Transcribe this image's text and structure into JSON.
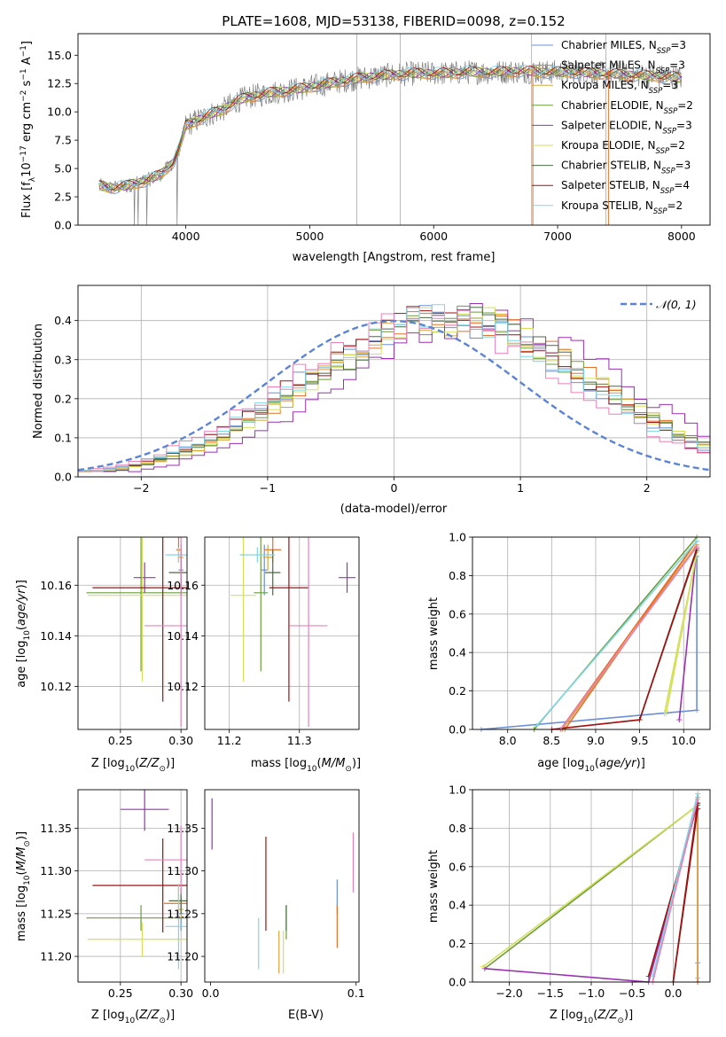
{
  "figure": {
    "title": "PLATE=1608, MJD=53138, FIBERID=0098, z=0.152"
  },
  "colors": {
    "chabrier_miles": "#6a8fd8",
    "salpeter_miles": "#e8702a",
    "kroupa_miles": "#d9a53a",
    "chabrier_elodie": "#6b9e3a",
    "salpeter_elodie": "#9932b0",
    "kroupa_elodie": "#d5e05a",
    "chabrier_stelib": "#4a6a46",
    "salpeter_stelib": "#a01010",
    "kroupa_stelib": "#7fd6e6",
    "pink": "#e880b8",
    "data": "#808080",
    "normal": "#5b84d6"
  },
  "chart_data": [
    {
      "id": "spectrum",
      "type": "line",
      "title": "PLATE=1608, MJD=53138, FIBERID=0098, z=0.152",
      "xlabel": "wavelength [Angstrom, rest frame]",
      "ylabel": "Flux [f_λ 10^-17 erg cm^-2 s^-1 A^-1]",
      "xlim": [
        3130,
        8230
      ],
      "ylim": [
        0,
        16.9
      ],
      "xticks": [
        4000,
        5000,
        6000,
        7000,
        8000
      ],
      "yticks": [
        0.0,
        2.5,
        5.0,
        7.5,
        10.0,
        12.5,
        15.0
      ],
      "grid": false,
      "legend_position": "top-right",
      "continuum": [
        {
          "x": 3300,
          "y": 3.5
        },
        {
          "x": 3400,
          "y": 3.3
        },
        {
          "x": 3500,
          "y": 3.4
        },
        {
          "x": 3600,
          "y": 3.7
        },
        {
          "x": 3700,
          "y": 4.0
        },
        {
          "x": 3800,
          "y": 4.5
        },
        {
          "x": 3900,
          "y": 5.6
        },
        {
          "x": 3950,
          "y": 6.8
        },
        {
          "x": 4000,
          "y": 8.8
        },
        {
          "x": 4100,
          "y": 9.3
        },
        {
          "x": 4200,
          "y": 9.8
        },
        {
          "x": 4300,
          "y": 10.2
        },
        {
          "x": 4400,
          "y": 10.9
        },
        {
          "x": 4500,
          "y": 11.3
        },
        {
          "x": 4700,
          "y": 11.7
        },
        {
          "x": 4900,
          "y": 12.0
        },
        {
          "x": 5100,
          "y": 12.4
        },
        {
          "x": 5300,
          "y": 12.8
        },
        {
          "x": 5500,
          "y": 13.1
        },
        {
          "x": 5700,
          "y": 13.3
        },
        {
          "x": 5900,
          "y": 13.4
        },
        {
          "x": 6100,
          "y": 13.4
        },
        {
          "x": 6300,
          "y": 13.5
        },
        {
          "x": 6500,
          "y": 13.5
        },
        {
          "x": 6700,
          "y": 13.6
        },
        {
          "x": 6900,
          "y": 13.5
        },
        {
          "x": 7100,
          "y": 13.5
        },
        {
          "x": 7300,
          "y": 13.4
        },
        {
          "x": 7500,
          "y": 13.3
        },
        {
          "x": 7700,
          "y": 13.2
        },
        {
          "x": 7900,
          "y": 13.1
        },
        {
          "x": 8000,
          "y": 13.0
        }
      ],
      "legend": [
        {
          "label": "Chabrier MILES, N",
          "sub": "SSP",
          "value": "=3",
          "color_key": "chabrier_miles"
        },
        {
          "label": "Salpeter MILES, N",
          "sub": "SSP",
          "value": "=3",
          "color_key": "salpeter_miles"
        },
        {
          "label": "Kroupa MILES, N",
          "sub": "SSP",
          "value": "=3",
          "color_key": "kroupa_miles"
        },
        {
          "label": "Chabrier ELODIE, N",
          "sub": "SSP",
          "value": "=2",
          "color_key": "chabrier_elodie"
        },
        {
          "label": "Salpeter ELODIE, N",
          "sub": "SSP",
          "value": "=3",
          "color_key": "salpeter_elodie"
        },
        {
          "label": "Kroupa ELODIE, N",
          "sub": "SSP",
          "value": "=2",
          "color_key": "kroupa_elodie"
        },
        {
          "label": "Chabrier STELIB, N",
          "sub": "SSP",
          "value": "=3",
          "color_key": "chabrier_stelib"
        },
        {
          "label": "Salpeter STELIB, N",
          "sub": "SSP",
          "value": "=4",
          "color_key": "salpeter_stelib"
        },
        {
          "label": "Kroupa STELIB, N",
          "sub": "SSP",
          "value": "=2",
          "color_key": "kroupa_stelib"
        }
      ]
    },
    {
      "id": "residuals",
      "type": "histogram",
      "xlabel": "(data-model)/error",
      "ylabel": "Normed distribution",
      "xlim": [
        -2.5,
        2.5
      ],
      "ylim": [
        0,
        0.49
      ],
      "xticks": [
        -2,
        -1,
        0,
        1,
        2
      ],
      "yticks": [
        0.0,
        0.1,
        0.2,
        0.3,
        0.4
      ],
      "grid": true,
      "legend_position": "top-right",
      "legend_label": "N(0, 1)",
      "normal_mean": 0,
      "normal_sigma": 1,
      "bin_start": -2.5,
      "bin_width": 0.1,
      "base_shape": [
        0.015,
        0.02,
        0.027,
        0.033,
        0.042,
        0.051,
        0.061,
        0.074,
        0.087,
        0.103,
        0.12,
        0.138,
        0.158,
        0.179,
        0.199,
        0.222,
        0.245,
        0.266,
        0.286,
        0.307,
        0.325,
        0.344,
        0.358,
        0.374,
        0.384,
        0.393,
        0.398,
        0.401,
        0.401,
        0.398,
        0.391,
        0.381,
        0.368,
        0.354,
        0.337,
        0.319,
        0.298,
        0.278,
        0.257,
        0.234,
        0.213,
        0.192,
        0.169,
        0.15,
        0.131,
        0.114,
        0.097,
        0.083,
        0.069,
        0.058
      ]
    },
    {
      "id": "age_vs_Z",
      "type": "errorbar",
      "xlabel": "Z [log10(Z/Z_sun)]",
      "ylabel": "age [log10(age/yr)]",
      "xlim": [
        0.215,
        0.305
      ],
      "ylim": [
        10.103,
        10.179
      ],
      "xticks": [
        0.25,
        0.3
      ],
      "xtick_labels": [
        "0.25",
        "0.30"
      ],
      "yticks": [
        10.12,
        10.14,
        10.16
      ],
      "grid": true,
      "points": [
        {
          "color_key": "chabrier_miles",
          "x": 0.3,
          "y": 10.166,
          "xerr": 0.002,
          "yerr": 0.01
        },
        {
          "color_key": "salpeter_miles",
          "x": 0.298,
          "y": 10.174,
          "xerr": 0.002,
          "yerr": 0.005
        },
        {
          "color_key": "kroupa_miles",
          "x": 0.3,
          "y": 10.171,
          "xerr": 0.002,
          "yerr": 0.005
        },
        {
          "color_key": "chabrier_elodie",
          "x": 0.267,
          "y": 10.157,
          "xerr": 0.045,
          "yerr": 0.031
        },
        {
          "color_key": "salpeter_elodie",
          "x": 0.27,
          "y": 10.163,
          "xerr": 0.009,
          "yerr": 0.006
        },
        {
          "color_key": "kroupa_elodie",
          "x": 0.268,
          "y": 10.156,
          "xerr": 0.045,
          "yerr": 0.034
        },
        {
          "color_key": "chabrier_stelib",
          "x": 0.3,
          "y": 10.165,
          "xerr": 0.01,
          "yerr": 0.009
        },
        {
          "color_key": "salpeter_stelib",
          "x": 0.285,
          "y": 10.159,
          "xerr": 0.058,
          "yerr": 0.045
        },
        {
          "color_key": "kroupa_stelib",
          "x": 0.298,
          "y": 10.172,
          "xerr": 0.011,
          "yerr": 0.003
        },
        {
          "color_key": "pink",
          "x": 0.3,
          "y": 10.144,
          "xerr": 0.03,
          "yerr": 0.04
        }
      ]
    },
    {
      "id": "age_vs_mass",
      "type": "errorbar",
      "xlabel": "mass [log10(M/M_sun)]",
      "xlim": [
        11.165,
        11.385
      ],
      "ylim": [
        10.103,
        10.179
      ],
      "xticks": [
        11.2,
        11.3
      ],
      "xtick_labels": [
        "11.2",
        "11.3"
      ],
      "yticks": [
        10.12,
        10.14,
        10.16
      ],
      "grid": true,
      "points": [
        {
          "color_key": "chabrier_miles",
          "x": 11.25,
          "y": 10.166,
          "xerr": 0.005,
          "yerr": 0.01
        },
        {
          "color_key": "salpeter_miles",
          "x": 11.262,
          "y": 10.174,
          "xerr": 0.012,
          "yerr": 0.005
        },
        {
          "color_key": "kroupa_miles",
          "x": 11.255,
          "y": 10.171,
          "xerr": 0.007,
          "yerr": 0.005
        },
        {
          "color_key": "chabrier_elodie",
          "x": 11.245,
          "y": 10.157,
          "xerr": 0.01,
          "yerr": 0.031
        },
        {
          "color_key": "salpeter_elodie",
          "x": 11.368,
          "y": 10.163,
          "xerr": 0.012,
          "yerr": 0.006
        },
        {
          "color_key": "kroupa_elodie",
          "x": 11.22,
          "y": 10.156,
          "xerr": 0.018,
          "yerr": 0.034
        },
        {
          "color_key": "chabrier_stelib",
          "x": 11.262,
          "y": 10.165,
          "xerr": 0.011,
          "yerr": 0.009
        },
        {
          "color_key": "salpeter_stelib",
          "x": 11.285,
          "y": 10.159,
          "xerr": 0.028,
          "yerr": 0.045
        },
        {
          "color_key": "kroupa_stelib",
          "x": 11.24,
          "y": 10.172,
          "xerr": 0.025,
          "yerr": 0.003
        },
        {
          "color_key": "pink",
          "x": 11.313,
          "y": 10.144,
          "xerr": 0.027,
          "yerr": 0.04
        }
      ]
    },
    {
      "id": "mass_weight_vs_age",
      "type": "line",
      "xlabel": "age [log10(age/yr)]",
      "ylabel": "mass weight",
      "xlim": [
        7.6,
        10.3
      ],
      "ylim": [
        0,
        1
      ],
      "xticks": [
        8.0,
        8.5,
        9.0,
        9.5,
        10.0
      ],
      "yticks": [
        0.0,
        0.2,
        0.4,
        0.6,
        0.8,
        1.0
      ],
      "grid": true,
      "series": [
        {
          "color_key": "chabrier_miles",
          "x": [
            7.7,
            10.15,
            10.15
          ],
          "y": [
            0.0,
            0.1,
            0.9
          ]
        },
        {
          "color_key": "salpeter_miles",
          "x": [
            8.6,
            10.15,
            8.65
          ],
          "y": [
            0.0,
            0.98,
            0.0
          ]
        },
        {
          "color_key": "kroupa_miles",
          "x": [
            8.62,
            10.15,
            8.62
          ],
          "y": [
            0.0,
            0.96,
            0.0
          ]
        },
        {
          "color_key": "chabrier_elodie",
          "x": [
            8.3,
            10.15,
            8.3
          ],
          "y": [
            0.0,
            1.0,
            0.0
          ]
        },
        {
          "color_key": "salpeter_elodie",
          "x": [
            9.95,
            10.15,
            9.95
          ],
          "y": [
            0.05,
            0.95,
            0.05
          ]
        },
        {
          "color_key": "kroupa_elodie",
          "x": [
            9.78,
            10.15,
            9.8
          ],
          "y": [
            0.08,
            0.92,
            0.08
          ]
        },
        {
          "color_key": "chabrier_stelib",
          "x": [
            9.5,
            10.15,
            9.5
          ],
          "y": [
            0.05,
            0.93,
            0.05
          ]
        },
        {
          "color_key": "salpeter_stelib",
          "x": [
            8.5,
            9.5,
            10.15,
            9.5
          ],
          "y": [
            0.0,
            0.05,
            0.94,
            0.05
          ]
        },
        {
          "color_key": "kroupa_stelib",
          "x": [
            8.33,
            10.15
          ],
          "y": [
            0.02,
            0.98
          ]
        },
        {
          "color_key": "pink",
          "x": [
            8.6,
            10.15
          ],
          "y": [
            0.0,
            0.95
          ]
        }
      ]
    },
    {
      "id": "mass_vs_Z",
      "type": "errorbar",
      "xlabel": "Z [log10(Z/Z_sun)]",
      "ylabel": "mass [log10(M/M_sun)]",
      "xlim": [
        0.215,
        0.305
      ],
      "ylim": [
        11.17,
        11.395
      ],
      "xticks": [
        0.25,
        0.3
      ],
      "xtick_labels": [
        "0.25",
        "0.30"
      ],
      "yticks": [
        11.2,
        11.25,
        11.3,
        11.35
      ],
      "grid": true,
      "points": [
        {
          "color_key": "chabrier_miles",
          "x": 0.3,
          "y": 11.25,
          "xerr": 0.002,
          "yerr": 0.02
        },
        {
          "color_key": "salpeter_miles",
          "x": 0.298,
          "y": 11.262,
          "xerr": 0.012,
          "yerr": 0.02
        },
        {
          "color_key": "kroupa_miles",
          "x": 0.3,
          "y": 11.255,
          "xerr": 0.002,
          "yerr": 0.01
        },
        {
          "color_key": "chabrier_elodie",
          "x": 0.267,
          "y": 11.245,
          "xerr": 0.045,
          "yerr": 0.015
        },
        {
          "color_key": "salpeter_elodie",
          "x": 0.27,
          "y": 11.372,
          "xerr": 0.02,
          "yerr": 0.025
        },
        {
          "color_key": "kroupa_elodie",
          "x": 0.268,
          "y": 11.22,
          "xerr": 0.045,
          "yerr": 0.02
        },
        {
          "color_key": "chabrier_stelib",
          "x": 0.3,
          "y": 11.265,
          "xerr": 0.01,
          "yerr": 0.015
        },
        {
          "color_key": "salpeter_stelib",
          "x": 0.285,
          "y": 11.283,
          "xerr": 0.058,
          "yerr": 0.055
        },
        {
          "color_key": "kroupa_stelib",
          "x": 0.298,
          "y": 11.235,
          "xerr": 0.011,
          "yerr": 0.05
        },
        {
          "color_key": "pink",
          "x": 0.3,
          "y": 11.313,
          "xerr": 0.03,
          "yerr": 0.04
        }
      ]
    },
    {
      "id": "mass_vs_ebv",
      "type": "errorbar",
      "xlabel": "E(B-V)",
      "xlim": [
        -0.004,
        0.102
      ],
      "ylim": [
        11.17,
        11.395
      ],
      "xticks": [
        0.0,
        0.1
      ],
      "xtick_labels": [
        "0.0",
        "0.1"
      ],
      "yticks": [
        11.2,
        11.25,
        11.3,
        11.35
      ],
      "grid": false,
      "points": [
        {
          "color_key": "chabrier_miles",
          "x": 0.087,
          "y": 11.27,
          "xerr": 0,
          "yerr": 0.02
        },
        {
          "color_key": "salpeter_miles",
          "x": 0.087,
          "y": 11.235,
          "xerr": 0,
          "yerr": 0.025
        },
        {
          "color_key": "kroupa_miles",
          "x": 0.047,
          "y": 11.205,
          "xerr": 0,
          "yerr": 0.025
        },
        {
          "color_key": "chabrier_elodie",
          "x": 0.052,
          "y": 11.24,
          "xerr": 0,
          "yerr": 0.02
        },
        {
          "color_key": "salpeter_elodie",
          "x": 0.001,
          "y": 11.355,
          "xerr": 0,
          "yerr": 0.03
        },
        {
          "color_key": "kroupa_elodie",
          "x": 0.05,
          "y": 11.205,
          "xerr": 0,
          "yerr": 0.025
        },
        {
          "color_key": "chabrier_stelib",
          "x": 0.052,
          "y": 11.245,
          "xerr": 0,
          "yerr": 0.015
        },
        {
          "color_key": "salpeter_stelib",
          "x": 0.038,
          "y": 11.285,
          "xerr": 0,
          "yerr": 0.055
        },
        {
          "color_key": "kroupa_stelib",
          "x": 0.033,
          "y": 11.215,
          "xerr": 0,
          "yerr": 0.03
        },
        {
          "color_key": "pink",
          "x": 0.098,
          "y": 11.31,
          "xerr": 0,
          "yerr": 0.035
        }
      ]
    },
    {
      "id": "mass_weight_vs_Z",
      "type": "line",
      "xlabel": "Z [log10(Z/Z_sun)]",
      "ylabel": "mass weight",
      "xlim": [
        -2.45,
        0.45
      ],
      "ylim": [
        0,
        1
      ],
      "xticks": [
        -2.0,
        -1.5,
        -1.0,
        -0.5,
        0.0
      ],
      "yticks": [
        0.0,
        0.2,
        0.4,
        0.6,
        0.8,
        1.0
      ],
      "grid": true,
      "series": [
        {
          "color_key": "chabrier_miles",
          "x": [
            0.3,
            0.3,
            0.3
          ],
          "y": [
            0.0,
            0.1,
            0.9
          ]
        },
        {
          "color_key": "salpeter_miles",
          "x": [
            0.3,
            0.3,
            0.3
          ],
          "y": [
            0.0,
            0.98,
            0.0
          ]
        },
        {
          "color_key": "kroupa_miles",
          "x": [
            0.3,
            0.3
          ],
          "y": [
            0.02,
            0.96
          ]
        },
        {
          "color_key": "chabrier_elodie",
          "x": [
            -2.3,
            0.3
          ],
          "y": [
            0.07,
            0.92
          ]
        },
        {
          "color_key": "salpeter_elodie",
          "x": [
            -2.3,
            -0.3,
            0.3
          ],
          "y": [
            0.07,
            0.0,
            0.93
          ]
        },
        {
          "color_key": "kroupa_elodie",
          "x": [
            -2.32,
            0.3
          ],
          "y": [
            0.08,
            0.92
          ]
        },
        {
          "color_key": "chabrier_stelib",
          "x": [
            0.0,
            0.3
          ],
          "y": [
            0.0,
            0.92
          ]
        },
        {
          "color_key": "salpeter_stelib",
          "x": [
            -0.3,
            0.3,
            0.0,
            0.3
          ],
          "y": [
            0.03,
            0.93,
            0.0,
            0.9
          ]
        },
        {
          "color_key": "kroupa_stelib",
          "x": [
            -0.25,
            0.3
          ],
          "y": [
            0.03,
            0.98
          ]
        },
        {
          "color_key": "pink",
          "x": [
            -0.25,
            0.3
          ],
          "y": [
            0.0,
            0.95
          ]
        }
      ]
    }
  ]
}
